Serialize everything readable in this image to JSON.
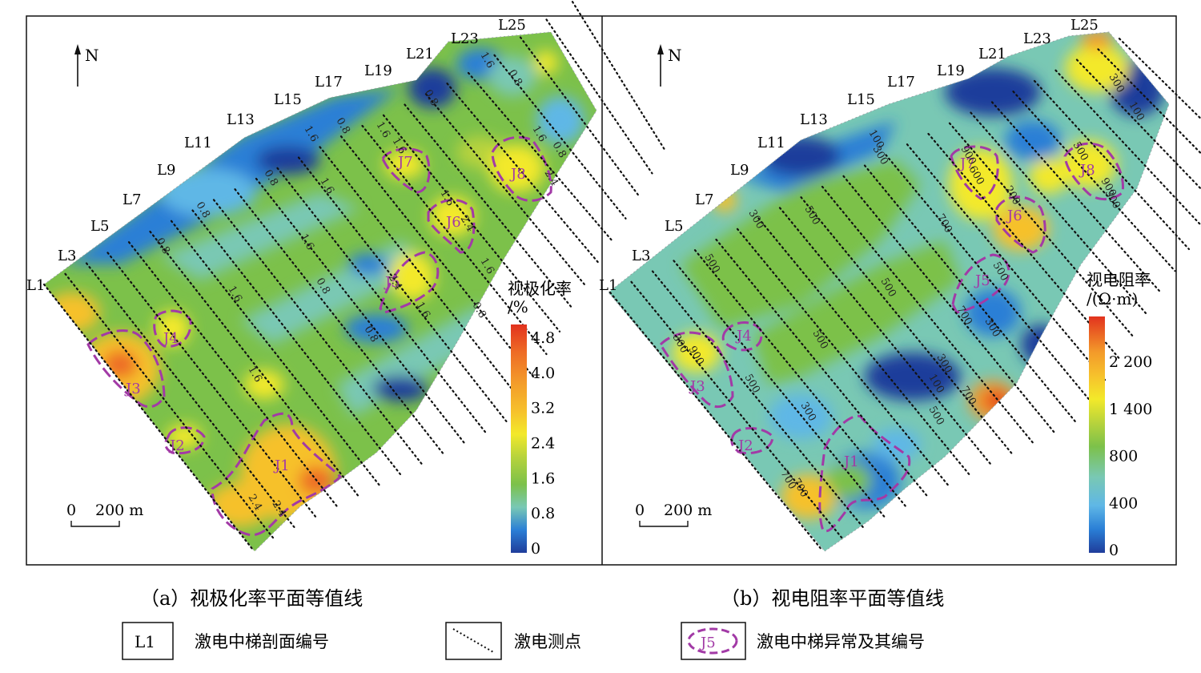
{
  "panels": [
    {
      "id": "a",
      "caption": "（a）视极化率平面等值线",
      "north": "N",
      "scale_zero": "0",
      "scale_text": "200 m",
      "colorbar_title": [
        "视极化率",
        "/%"
      ],
      "colorbar_ticks": [
        "4.8",
        "4.0",
        "3.2",
        "2.4",
        "1.6",
        "0.8",
        "0"
      ],
      "lines": [
        "L1",
        "L3",
        "L5",
        "L7",
        "L9",
        "L11",
        "L13",
        "L15",
        "L17",
        "L19",
        "L21",
        "L23",
        "L25"
      ],
      "anomalies": [
        "J1",
        "J2",
        "J3",
        "J4",
        "J5",
        "J6",
        "J7",
        "J8"
      ],
      "contour_labels": [
        "0.8",
        "1.6",
        "2.4",
        "0.8",
        "1.6",
        "0.8",
        "1.6",
        "2.4",
        "0.8",
        "1.6",
        "0.8",
        "1.6",
        "0.8",
        "1.6",
        "2.4",
        "1.6",
        "0.8",
        "1.6",
        "0.8",
        "1.6",
        "0.8",
        "2.4",
        "1.6",
        "0.8",
        "1.6",
        "2.4",
        "1.6"
      ]
    },
    {
      "id": "b",
      "caption": "（b）视电阻率平面等值线",
      "north": "N",
      "scale_zero": "0",
      "scale_text": "200 m",
      "colorbar_title": [
        "视电阻率",
        "/(Ω·m)"
      ],
      "colorbar_ticks": [
        "2 200",
        "1 400",
        "800",
        "400",
        "0"
      ],
      "lines": [
        "L1",
        "L3",
        "L5",
        "L7",
        "L9",
        "L11",
        "L13",
        "L15",
        "L17",
        "L19",
        "L21",
        "L23",
        "L25"
      ],
      "anomalies": [
        "J1",
        "J2",
        "J3",
        "J4",
        "J5",
        "J6",
        "J7",
        "J8"
      ],
      "contour_labels": [
        "300",
        "500",
        "700",
        "900",
        "500",
        "300",
        "500",
        "700",
        "300",
        "500",
        "100",
        "300",
        "500",
        "700",
        "900",
        "600",
        "200",
        "500",
        "700",
        "300",
        "100",
        "300",
        "500",
        "700",
        "100",
        "300",
        "500",
        "900",
        "300"
      ]
    }
  ],
  "legend": {
    "profile_box": "L1",
    "profile_text": "激电中梯剖面编号",
    "points_text": "激电测点",
    "anomaly_box": "J5",
    "anomaly_text": "激电中梯异常及其编号"
  },
  "colors": {
    "anomaly_outline": "#a23aa6",
    "colormap": [
      "#1f3d9b",
      "#2a7fd6",
      "#5fb7e6",
      "#79c8b4",
      "#7cc14a",
      "#b7d33c",
      "#f3e92a",
      "#f6c12c",
      "#f39a2a",
      "#ee6b25",
      "#e2321e"
    ]
  }
}
